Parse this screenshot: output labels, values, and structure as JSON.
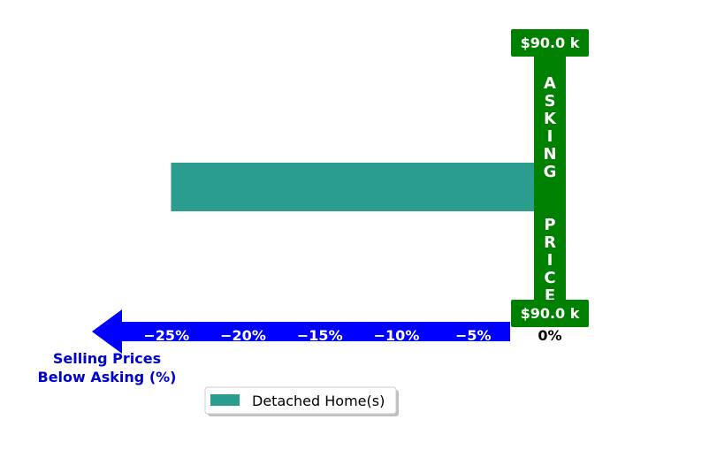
{
  "chart_data": {
    "type": "bar",
    "orientation": "horizontal",
    "series": [
      {
        "name": "Detached Home(s)",
        "values": [
          -24.7
        ],
        "color": "#2a9d8f"
      }
    ],
    "x_ticks": [
      -25,
      -20,
      -15,
      -10,
      -5,
      0
    ],
    "x_tick_labels": [
      "−25%",
      "−20%",
      "−15%",
      "−10%",
      "−5%",
      "0%"
    ],
    "xlim": [
      -27.5,
      2.5
    ],
    "xlabel_lines": [
      "Selling Prices",
      "Below Asking (%)"
    ],
    "asking_price_label": "ASKING  PRICE",
    "asking_price_top": "$90.0 k",
    "asking_price_bottom": "$90.0 k",
    "legend_position": "bottom-center",
    "grid": false
  },
  "colors": {
    "arrow": "#0000ff",
    "asking_price": "#008000",
    "axis_caption": "#0000d0",
    "bar": "#2a9d8f"
  }
}
